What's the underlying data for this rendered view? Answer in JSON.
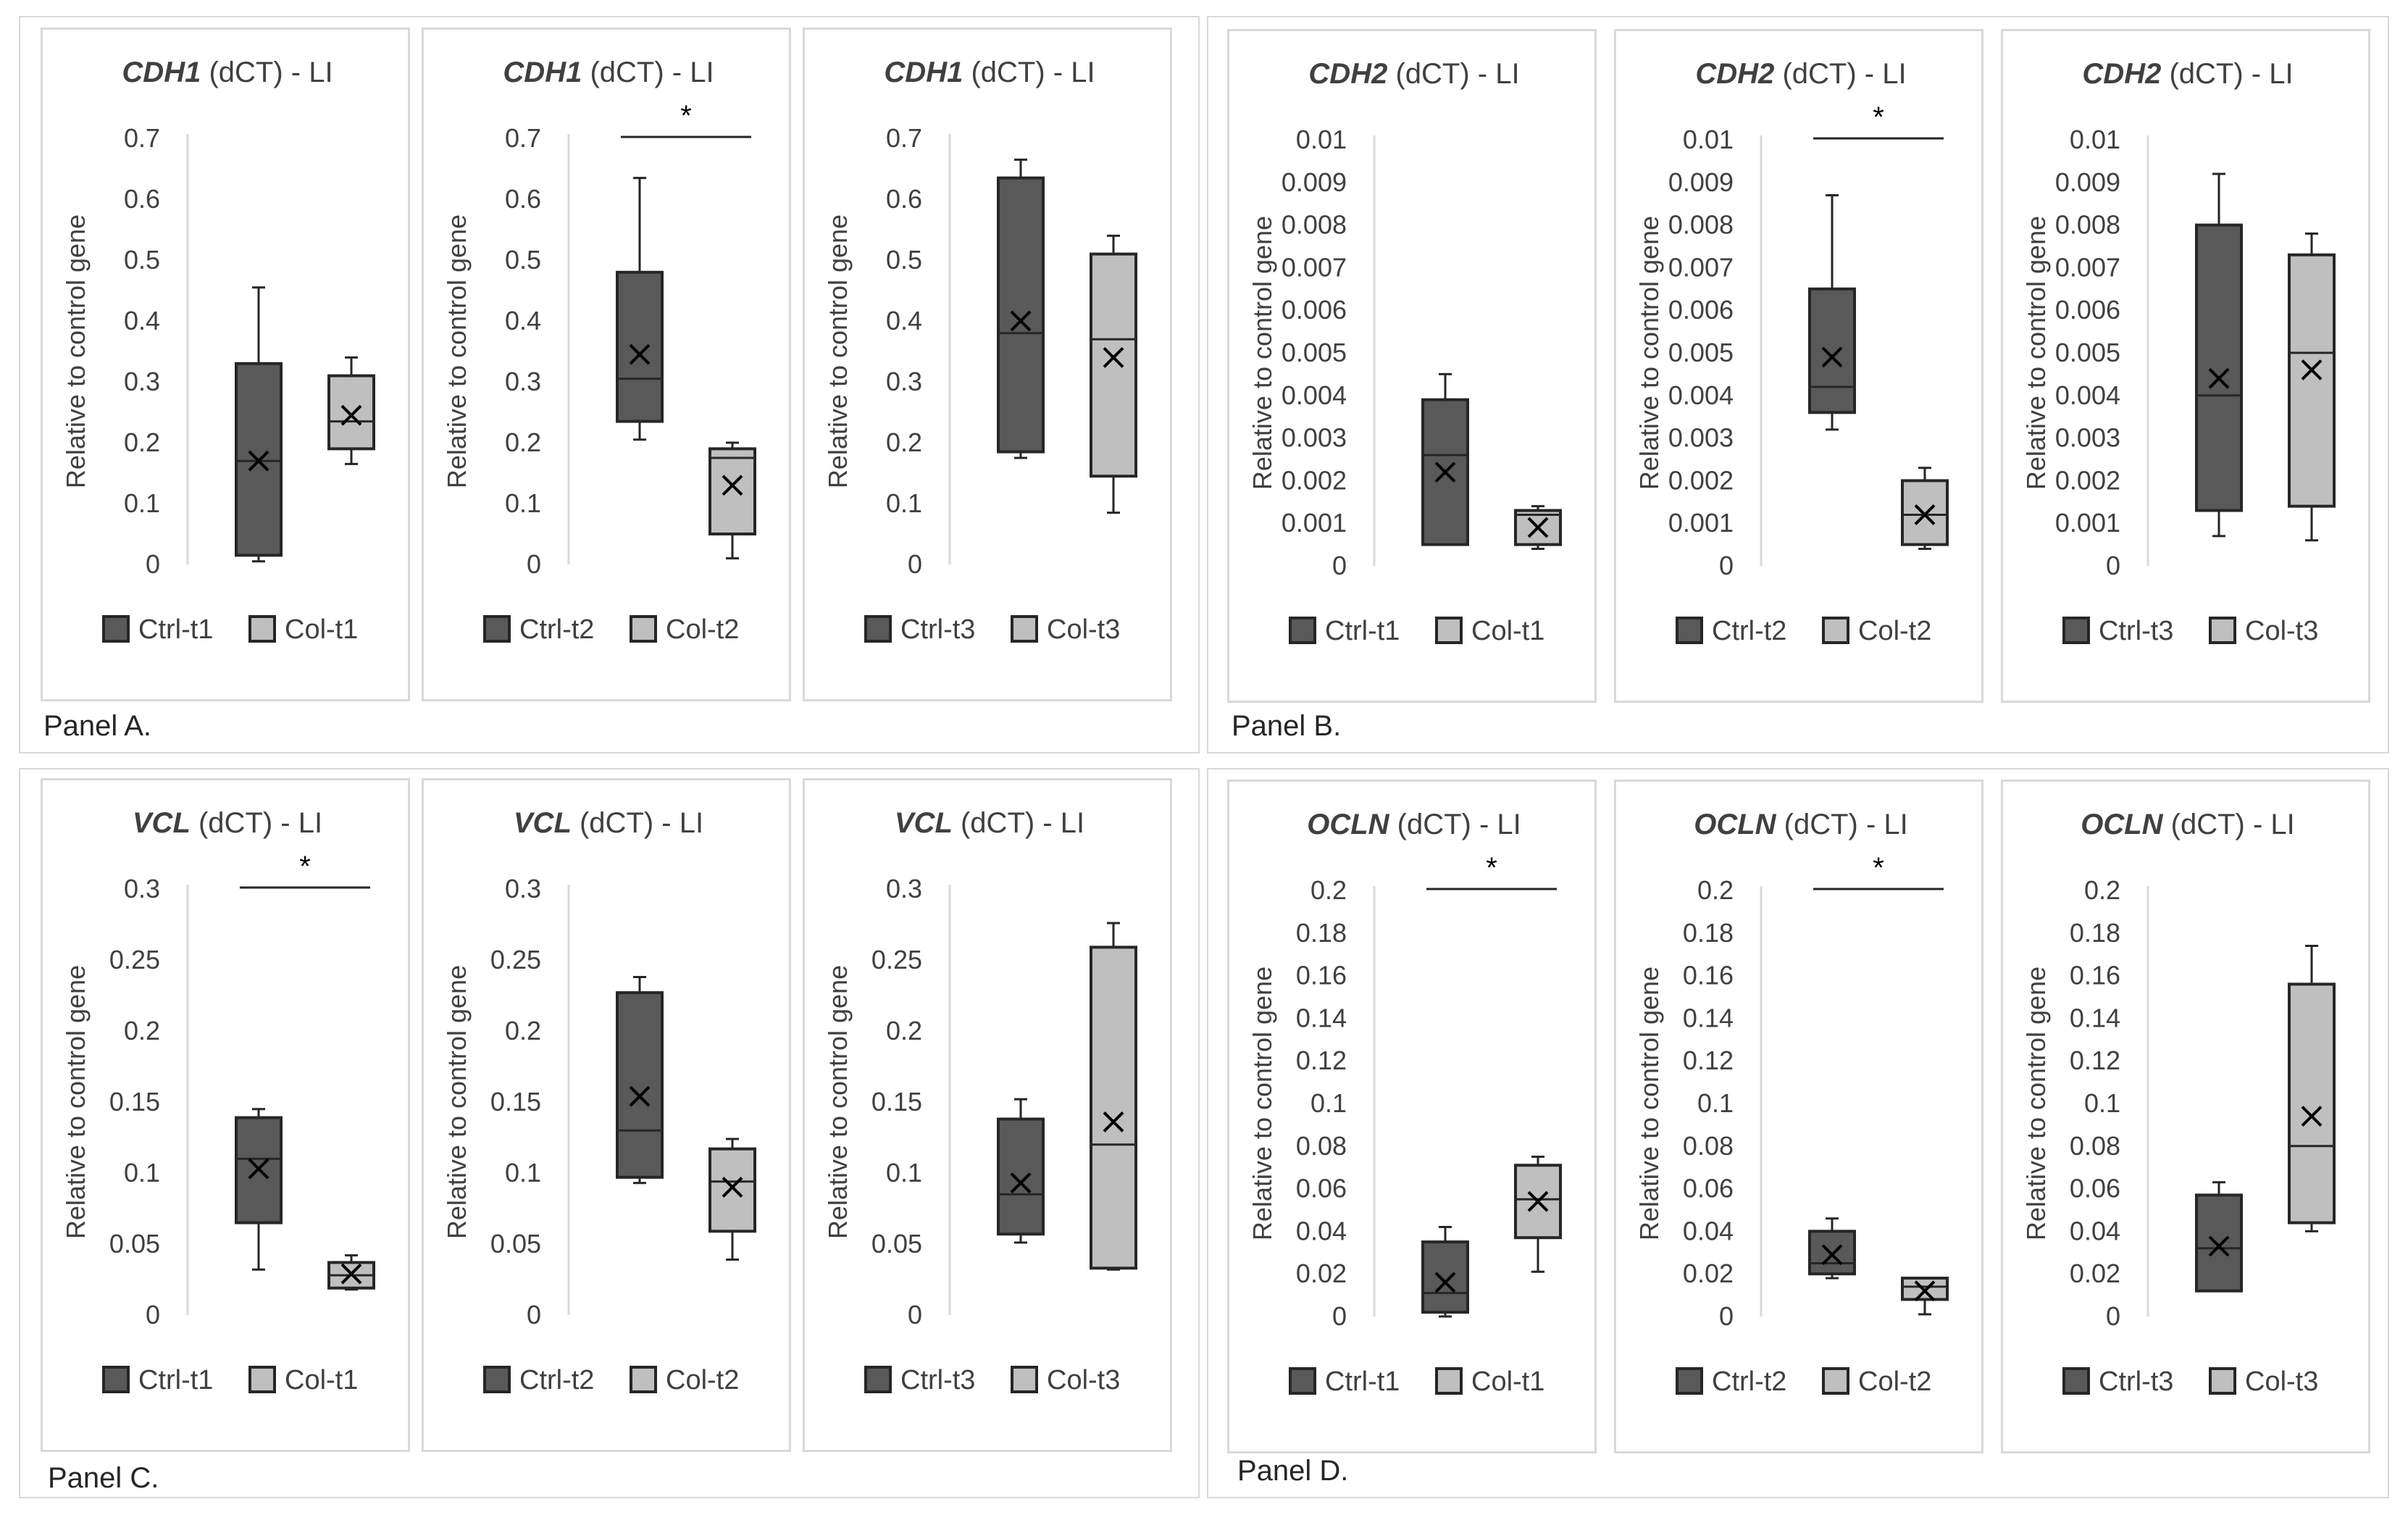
{
  "panel_labels": [
    "Panel A.",
    "Panel B.",
    "Panel C.",
    "Panel D."
  ],
  "colors": {
    "ctrl_fill": "#595959",
    "col_fill": "#bfbfbf",
    "box_stroke": "#262626",
    "axis": "#d9d9d9",
    "tick_text": "#404040",
    "title_text": "#404040",
    "border": "#d9d9d9"
  },
  "chart_data": [
    {
      "type": "boxplot",
      "panel": "A",
      "gene": "CDH1",
      "title_suffix": " (dCT) - LI",
      "ylabel": "Relative to control gene",
      "ylim": [
        0,
        0.7
      ],
      "yticks": [
        "0",
        "0.1",
        "0.2",
        "0.3",
        "0.4",
        "0.5",
        "0.6",
        "0.7"
      ],
      "significant": false,
      "series": [
        {
          "name": "Ctrl-t1",
          "min": 0.005,
          "q1": 0.015,
          "median": 0.17,
          "q3": 0.33,
          "max": 0.455,
          "mean": 0.17
        },
        {
          "name": "Col-t1",
          "min": 0.165,
          "q1": 0.19,
          "median": 0.235,
          "q3": 0.31,
          "max": 0.34,
          "mean": 0.245
        }
      ]
    },
    {
      "type": "boxplot",
      "panel": "A",
      "gene": "CDH1",
      "title_suffix": " (dCT) - LI",
      "ylabel": "Relative to control gene",
      "ylim": [
        0,
        0.7
      ],
      "yticks": [
        "0",
        "0.1",
        "0.2",
        "0.3",
        "0.4",
        "0.5",
        "0.6",
        "0.7"
      ],
      "significant": true,
      "series": [
        {
          "name": "Ctrl-t2",
          "min": 0.205,
          "q1": 0.235,
          "median": 0.305,
          "q3": 0.48,
          "max": 0.635,
          "mean": 0.345
        },
        {
          "name": "Col-t2",
          "min": 0.01,
          "q1": 0.05,
          "median": 0.175,
          "q3": 0.19,
          "max": 0.2,
          "mean": 0.13
        }
      ]
    },
    {
      "type": "boxplot",
      "panel": "A",
      "gene": "CDH1",
      "title_suffix": " (dCT) - LI",
      "ylabel": "Relative to control gene",
      "ylim": [
        0,
        0.7
      ],
      "yticks": [
        "0",
        "0.1",
        "0.2",
        "0.3",
        "0.4",
        "0.5",
        "0.6",
        "0.7"
      ],
      "significant": false,
      "series": [
        {
          "name": "Ctrl-t3",
          "min": 0.175,
          "q1": 0.185,
          "median": 0.38,
          "q3": 0.635,
          "max": 0.665,
          "mean": 0.4
        },
        {
          "name": "Col-t3",
          "min": 0.085,
          "q1": 0.145,
          "median": 0.37,
          "q3": 0.51,
          "max": 0.54,
          "mean": 0.34
        }
      ]
    },
    {
      "type": "boxplot",
      "panel": "B",
      "gene": "CDH2",
      "title_suffix": " (dCT) - LI",
      "ylabel": "Relative to control gene",
      "ylim": [
        0,
        0.01
      ],
      "yticks": [
        "0",
        "0.001",
        "0.002",
        "0.003",
        "0.004",
        "0.005",
        "0.006",
        "0.007",
        "0.008",
        "0.009",
        "0.01"
      ],
      "significant": false,
      "series": [
        {
          "name": "Ctrl-t1",
          "min": 0.0005,
          "q1": 0.0005,
          "median": 0.0026,
          "q3": 0.0039,
          "max": 0.0045,
          "mean": 0.0022
        },
        {
          "name": "Col-t1",
          "min": 0.0004,
          "q1": 0.0005,
          "median": 0.0012,
          "q3": 0.0013,
          "max": 0.0014,
          "mean": 0.0009
        }
      ]
    },
    {
      "type": "boxplot",
      "panel": "B",
      "gene": "CDH2",
      "title_suffix": " (dCT) - LI",
      "ylabel": "Relative to control gene",
      "ylim": [
        0,
        0.01
      ],
      "yticks": [
        "0",
        "0.001",
        "0.002",
        "0.003",
        "0.004",
        "0.005",
        "0.006",
        "0.007",
        "0.008",
        "0.009",
        "0.01"
      ],
      "significant": true,
      "series": [
        {
          "name": "Ctrl-t2",
          "min": 0.0032,
          "q1": 0.0036,
          "median": 0.0042,
          "q3": 0.0065,
          "max": 0.0087,
          "mean": 0.0049
        },
        {
          "name": "Col-t2",
          "min": 0.0004,
          "q1": 0.0005,
          "median": 0.0012,
          "q3": 0.002,
          "max": 0.0023,
          "mean": 0.0012
        }
      ]
    },
    {
      "type": "boxplot",
      "panel": "B",
      "gene": "CDH2",
      "title_suffix": " (dCT) - LI",
      "ylabel": "Relative to control gene",
      "ylim": [
        0,
        0.01
      ],
      "yticks": [
        "0",
        "0.001",
        "0.002",
        "0.003",
        "0.004",
        "0.005",
        "0.006",
        "0.007",
        "0.008",
        "0.009",
        "0.01"
      ],
      "significant": false,
      "series": [
        {
          "name": "Ctrl-t3",
          "min": 0.0007,
          "q1": 0.0013,
          "median": 0.004,
          "q3": 0.008,
          "max": 0.0092,
          "mean": 0.0044
        },
        {
          "name": "Col-t3",
          "min": 0.0006,
          "q1": 0.0014,
          "median": 0.005,
          "q3": 0.0073,
          "max": 0.0078,
          "mean": 0.0046
        }
      ]
    },
    {
      "type": "boxplot",
      "panel": "C",
      "gene": "VCL",
      "title_suffix": " (dCT) - LI",
      "ylabel": "Relative to control gene",
      "ylim": [
        0,
        0.3
      ],
      "yticks": [
        "0",
        "0.05",
        "0.1",
        "0.15",
        "0.2",
        "0.25",
        "0.3"
      ],
      "significant": true,
      "series": [
        {
          "name": "Ctrl-t1",
          "min": 0.032,
          "q1": 0.065,
          "median": 0.11,
          "q3": 0.139,
          "max": 0.145,
          "mean": 0.103
        },
        {
          "name": "Col-t1",
          "min": 0.018,
          "q1": 0.019,
          "median": 0.028,
          "q3": 0.037,
          "max": 0.042,
          "mean": 0.029
        }
      ]
    },
    {
      "type": "boxplot",
      "panel": "C",
      "gene": "VCL",
      "title_suffix": " (dCT) - LI",
      "ylabel": "Relative to control gene",
      "ylim": [
        0,
        0.3
      ],
      "yticks": [
        "0",
        "0.05",
        "0.1",
        "0.15",
        "0.2",
        "0.25",
        "0.3"
      ],
      "significant": false,
      "series": [
        {
          "name": "Ctrl-t2",
          "min": 0.093,
          "q1": 0.097,
          "median": 0.13,
          "q3": 0.227,
          "max": 0.238,
          "mean": 0.154
        },
        {
          "name": "Col-t2",
          "min": 0.039,
          "q1": 0.059,
          "median": 0.094,
          "q3": 0.117,
          "max": 0.124,
          "mean": 0.09
        }
      ]
    },
    {
      "type": "boxplot",
      "panel": "C",
      "gene": "VCL",
      "title_suffix": " (dCT) - LI",
      "ylabel": "Relative to control gene",
      "ylim": [
        0,
        0.3
      ],
      "yticks": [
        "0",
        "0.05",
        "0.1",
        "0.15",
        "0.2",
        "0.25",
        "0.3"
      ],
      "significant": false,
      "series": [
        {
          "name": "Ctrl-t3",
          "min": 0.051,
          "q1": 0.057,
          "median": 0.085,
          "q3": 0.138,
          "max": 0.152,
          "mean": 0.093
        },
        {
          "name": "Col-t3",
          "min": 0.032,
          "q1": 0.033,
          "median": 0.12,
          "q3": 0.259,
          "max": 0.276,
          "mean": 0.136
        }
      ]
    },
    {
      "type": "boxplot",
      "panel": "D",
      "gene": "OCLN",
      "title_suffix": " (dCT) - LI",
      "ylabel": "Relative to control gene",
      "ylim": [
        0,
        0.2
      ],
      "yticks": [
        "0",
        "0.02",
        "0.04",
        "0.06",
        "0.08",
        "0.1",
        "0.12",
        "0.14",
        "0.16",
        "0.18",
        "0.2"
      ],
      "significant": true,
      "series": [
        {
          "name": "Ctrl-t1",
          "min": 0,
          "q1": 0.002,
          "median": 0.011,
          "q3": 0.035,
          "max": 0.042,
          "mean": 0.016
        },
        {
          "name": "Col-t1",
          "min": 0.021,
          "q1": 0.037,
          "median": 0.055,
          "q3": 0.071,
          "max": 0.075,
          "mean": 0.054
        }
      ]
    },
    {
      "type": "boxplot",
      "panel": "D",
      "gene": "OCLN",
      "title_suffix": " (dCT) - LI",
      "ylabel": "Relative to control gene",
      "ylim": [
        0,
        0.2
      ],
      "yticks": [
        "0",
        "0.02",
        "0.04",
        "0.06",
        "0.08",
        "0.1",
        "0.12",
        "0.14",
        "0.16",
        "0.18",
        "0.2"
      ],
      "significant": true,
      "series": [
        {
          "name": "Ctrl-t2",
          "min": 0.018,
          "q1": 0.02,
          "median": 0.025,
          "q3": 0.04,
          "max": 0.046,
          "mean": 0.029
        },
        {
          "name": "Col-t2",
          "min": 0.001,
          "q1": 0.008,
          "median": 0.014,
          "q3": 0.018,
          "max": 0.018,
          "mean": 0.012
        }
      ]
    },
    {
      "type": "boxplot",
      "panel": "D",
      "gene": "OCLN",
      "title_suffix": " (dCT) - LI",
      "ylabel": "Relative to control gene",
      "ylim": [
        0,
        0.2
      ],
      "yticks": [
        "0",
        "0.02",
        "0.04",
        "0.06",
        "0.08",
        "0.1",
        "0.12",
        "0.14",
        "0.16",
        "0.18",
        "0.2"
      ],
      "significant": false,
      "series": [
        {
          "name": "Ctrl-t3",
          "min": 0.012,
          "q1": 0.012,
          "median": 0.032,
          "q3": 0.057,
          "max": 0.063,
          "mean": 0.033
        },
        {
          "name": "Col-t3",
          "min": 0.04,
          "q1": 0.044,
          "median": 0.08,
          "q3": 0.156,
          "max": 0.174,
          "mean": 0.094
        }
      ]
    }
  ]
}
